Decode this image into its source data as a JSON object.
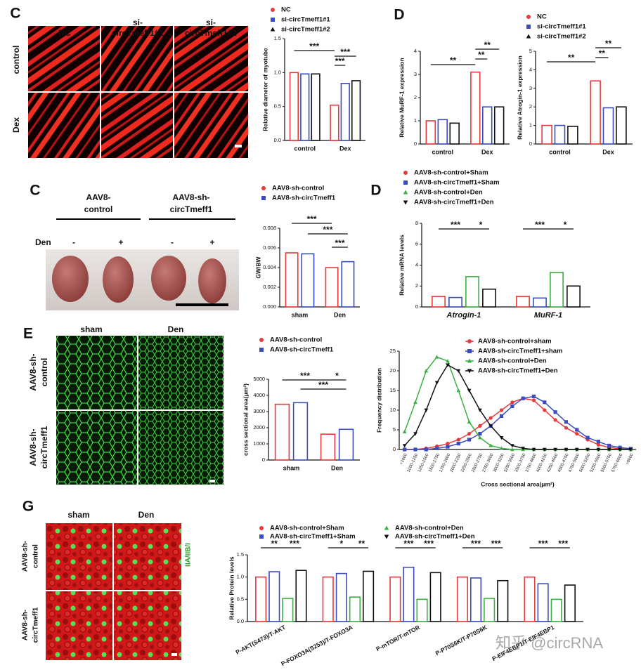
{
  "figure": {
    "panel_c1": {
      "letter": "C",
      "columns": [
        [
          "NC"
        ],
        [
          "si-",
          "circTmeff1#1"
        ],
        [
          "si-",
          "circTmeff1#2"
        ]
      ],
      "rows": [
        "control",
        "Dex"
      ]
    },
    "panel_d1": {
      "letter": "D"
    },
    "panel_c2": {
      "letter": "C",
      "groups": [
        [
          "AAV8-",
          "control"
        ],
        [
          "AAV8-sh-",
          "circTmeff1"
        ]
      ],
      "treatment": "Den",
      "signs": [
        "-",
        "+",
        "-",
        "+"
      ]
    },
    "panel_d2": {
      "letter": "D"
    },
    "panel_e": {
      "letter": "E",
      "columns": [
        "sham",
        "Den"
      ],
      "rows": [
        [
          "AAV8-sh-",
          "control"
        ],
        [
          "AAV8-sh-",
          "circTmeff1"
        ]
      ]
    },
    "panel_g": {
      "letter": "G",
      "columns": [
        "sham",
        "Den"
      ],
      "rows": [
        [
          "AAV8-sh-",
          "control"
        ],
        [
          "AAV8-sh-",
          "circTmeff1"
        ]
      ],
      "stain": "IIA/IIB/I"
    },
    "watermark": "知乎 @circRNA"
  },
  "chart_data": [
    {
      "type": "bar",
      "ylabel": "Relative diameter of myotube",
      "categories": [
        "control",
        "Dex"
      ],
      "series": [
        {
          "name": "NC",
          "color": "#e8393b",
          "marker": "circle",
          "values": [
            1.0,
            0.52
          ]
        },
        {
          "name": "si-circTmeff1#1",
          "color": "#3b4cc0",
          "marker": "square",
          "values": [
            0.98,
            0.84
          ]
        },
        {
          "name": "si-circTmeff1#2",
          "color": "#111111",
          "marker": "triangle",
          "values": [
            0.98,
            0.88
          ]
        }
      ],
      "ylim": [
        0,
        1.5
      ],
      "yticks": [
        {
          "value": 0,
          "label": "0.0"
        },
        {
          "value": 0.5,
          "label": "0.5"
        },
        {
          "value": 1,
          "label": "1.0"
        },
        {
          "value": 1.5,
          "label": "1.5"
        }
      ],
      "legend": "top",
      "annotations": [
        "***",
        "***",
        "***"
      ]
    },
    {
      "type": "bar",
      "ylabel": "Relative MuRF-1 expression",
      "categories": [
        "control",
        "Dex"
      ],
      "series": [
        {
          "color": "#e8393b",
          "marker": "circle",
          "values": [
            1.0,
            3.1
          ]
        },
        {
          "color": "#3b4cc0",
          "marker": "square",
          "values": [
            1.05,
            1.6
          ]
        },
        {
          "color": "#111111",
          "marker": "triangle",
          "values": [
            0.9,
            1.6
          ]
        }
      ],
      "ylim": [
        0,
        4
      ],
      "yticks": [
        0,
        1,
        2,
        3,
        4
      ],
      "annotations": [
        "**",
        "**",
        "**"
      ]
    },
    {
      "type": "bar",
      "ylabel": "Relative Atrogin-1 expression",
      "categories": [
        "control",
        "Dex"
      ],
      "series": [
        {
          "name": "NC",
          "color": "#e8393b",
          "marker": "circle",
          "values": [
            1.0,
            3.4
          ]
        },
        {
          "name": "si-circTmeff1#1",
          "color": "#3b4cc0",
          "marker": "square",
          "values": [
            1.0,
            1.95
          ]
        },
        {
          "name": "si-circTmeff1#2",
          "color": "#111111",
          "marker": "triangle",
          "values": [
            0.95,
            2.0
          ]
        }
      ],
      "ylim": [
        0,
        5
      ],
      "yticks": [
        0,
        1,
        2,
        3,
        4,
        5
      ],
      "legend": "top",
      "annotations": [
        "**",
        "**",
        "**"
      ]
    },
    {
      "type": "bar",
      "ylabel": "GW/BW",
      "categories": [
        "sham",
        "Den"
      ],
      "series": [
        {
          "name": "AAV8-sh-control",
          "color": "#e8393b",
          "marker": "circle",
          "values": [
            0.0055,
            0.004
          ]
        },
        {
          "name": "AAV8-sh-circTmeff1",
          "color": "#3b4cc0",
          "marker": "square",
          "values": [
            0.0054,
            0.0046
          ]
        }
      ],
      "ylim": [
        0,
        0.008
      ],
      "yticks": [
        {
          "value": 0,
          "label": "0.000"
        },
        {
          "value": 0.002,
          "label": "0.002"
        },
        {
          "value": 0.004,
          "label": "0.004"
        },
        {
          "value": 0.006,
          "label": "0.006"
        },
        {
          "value": 0.008,
          "label": "0.008"
        }
      ],
      "legend": "top",
      "annotations": [
        "***",
        "***",
        "***"
      ]
    },
    {
      "type": "bar",
      "ylabel": "Relative mRNA levels",
      "categories": [
        "Atrogin-1",
        "MuRF-1"
      ],
      "series": [
        {
          "name": "AAV8-sh-control+Sham",
          "color": "#e8393b",
          "marker": "circle",
          "values": [
            1.0,
            1.0
          ]
        },
        {
          "name": "AAV8-sh-circTmeff1+Sham",
          "color": "#3b4cc0",
          "marker": "square",
          "values": [
            0.9,
            0.85
          ]
        },
        {
          "name": "AAV8-sh-control+Den",
          "color": "#3cb043",
          "marker": "triangle",
          "values": [
            2.9,
            3.3
          ]
        },
        {
          "name": "AAV8-sh-circTmeff1+Den",
          "color": "#111111",
          "marker": "down-triangle",
          "values": [
            1.7,
            2.0
          ]
        }
      ],
      "ylim": [
        0,
        8
      ],
      "yticks": [
        0,
        2,
        4,
        6,
        8
      ],
      "legend": "top",
      "annotations": [
        "***",
        "*",
        "***",
        "*"
      ]
    },
    {
      "type": "bar",
      "ylabel": "cross sectional area(μm²)",
      "categories": [
        "sham",
        "Den"
      ],
      "series": [
        {
          "name": "AAV8-sh-control",
          "color": "#e8393b",
          "marker": "circle",
          "values": [
            3450,
            1600
          ]
        },
        {
          "name": "AAV8-sh-circTmeff1",
          "color": "#3b4cc0",
          "marker": "square",
          "values": [
            3550,
            1900
          ]
        }
      ],
      "ylim": [
        0,
        5000
      ],
      "yticks": [
        0,
        1000,
        2000,
        3000,
        4000,
        5000
      ],
      "legend": "top",
      "annotations": [
        "***",
        "*",
        "***"
      ]
    },
    {
      "type": "line",
      "ylabel": "Frequency distribution",
      "xlabel": "Cross sectional area(μm²)",
      "categories": [
        "<1000",
        "1000-1250",
        "1250-1500",
        "1500-1750",
        "1750-2000",
        "2000-2250",
        "2250-2500",
        "2500-2750",
        "2750-3000",
        "3000-3250",
        "3250-3500",
        "3500-3750",
        "3750-4000",
        "4000-4250",
        "4250-4500",
        "4500-4750",
        "4750-5000",
        "5000-5250",
        "5250-5500",
        "5500-5750",
        "5750-6000",
        ">6000"
      ],
      "series": [
        {
          "name": "AAV8-sh-control+sham",
          "color": "#e8393b",
          "marker": "circle",
          "values": [
            0,
            0,
            0.3,
            0.8,
            1.5,
            2.5,
            4,
            6,
            8,
            10,
            12,
            13,
            12.5,
            10,
            7.5,
            5.5,
            4,
            2.5,
            1.2,
            0.5,
            0.2,
            0
          ]
        },
        {
          "name": "AAV8-sh-circTmeff1+sham",
          "color": "#3b4cc0",
          "marker": "square",
          "values": [
            0,
            0,
            0,
            0.3,
            0.7,
            1.5,
            2.5,
            4,
            6,
            8.5,
            11,
            13,
            13.5,
            12,
            9.5,
            7,
            5,
            3,
            2,
            1,
            0.5,
            0.2
          ]
        },
        {
          "name": "AAV8-sh-control+Den",
          "color": "#3cb043",
          "marker": "triangle",
          "values": [
            4.5,
            12,
            20,
            23.5,
            22.5,
            15,
            7,
            3,
            1,
            0.3,
            0,
            0,
            0,
            0,
            0,
            0,
            0,
            0,
            0,
            0,
            0,
            0
          ]
        },
        {
          "name": "AAV8-sh-circTmeff1+Den",
          "color": "#111111",
          "marker": "down-triangle",
          "values": [
            1,
            4,
            10,
            17,
            21.5,
            20,
            15,
            10,
            6,
            3,
            1,
            0.3,
            0,
            0,
            0,
            0,
            0,
            0,
            0,
            0,
            0,
            0
          ]
        }
      ],
      "ylim": [
        0,
        25
      ],
      "yticks": [
        0,
        5,
        10,
        15,
        20,
        25
      ],
      "legend": "top-right"
    },
    {
      "type": "bar",
      "ylabel": "Relative Protein levels",
      "categories": [
        "P-AKT(S473)/T-AKT",
        "P-FOXO3A(S253)/T-FOXO3A",
        "P-mTOR/T-mTOR",
        "P-P70S6K/T-P70S6K",
        "P-EIF4EBP1/T-EIF4EBP1"
      ],
      "series": [
        {
          "name": "AAV8-sh-control+Sham",
          "color": "#e8393b",
          "marker": "circle",
          "values": [
            1.0,
            1.0,
            1.0,
            1.0,
            1.0
          ]
        },
        {
          "name": "AAV8-sh-circTmeff1+Sham",
          "color": "#3b4cc0",
          "marker": "square",
          "values": [
            1.12,
            1.08,
            1.22,
            0.98,
            0.85
          ]
        },
        {
          "name": "AAV8-sh-control+Den",
          "color": "#3cb043",
          "marker": "triangle",
          "values": [
            0.52,
            0.55,
            0.5,
            0.52,
            0.5
          ]
        },
        {
          "name": "AAV8-sh-circTmeff1+Den",
          "color": "#111111",
          "marker": "down-triangle",
          "values": [
            1.15,
            1.13,
            1.1,
            0.92,
            0.82
          ]
        }
      ],
      "ylim": [
        0,
        1.5
      ],
      "yticks": [
        {
          "value": 0,
          "label": "0.0"
        },
        {
          "value": 0.5,
          "label": "0.5"
        },
        {
          "value": 1,
          "label": "1.0"
        },
        {
          "value": 1.5,
          "label": "1.5"
        }
      ],
      "legend": "top",
      "annotations": [
        "**",
        "***",
        "*",
        "**",
        "***",
        "***",
        "***",
        "***",
        "***",
        "***"
      ]
    }
  ]
}
